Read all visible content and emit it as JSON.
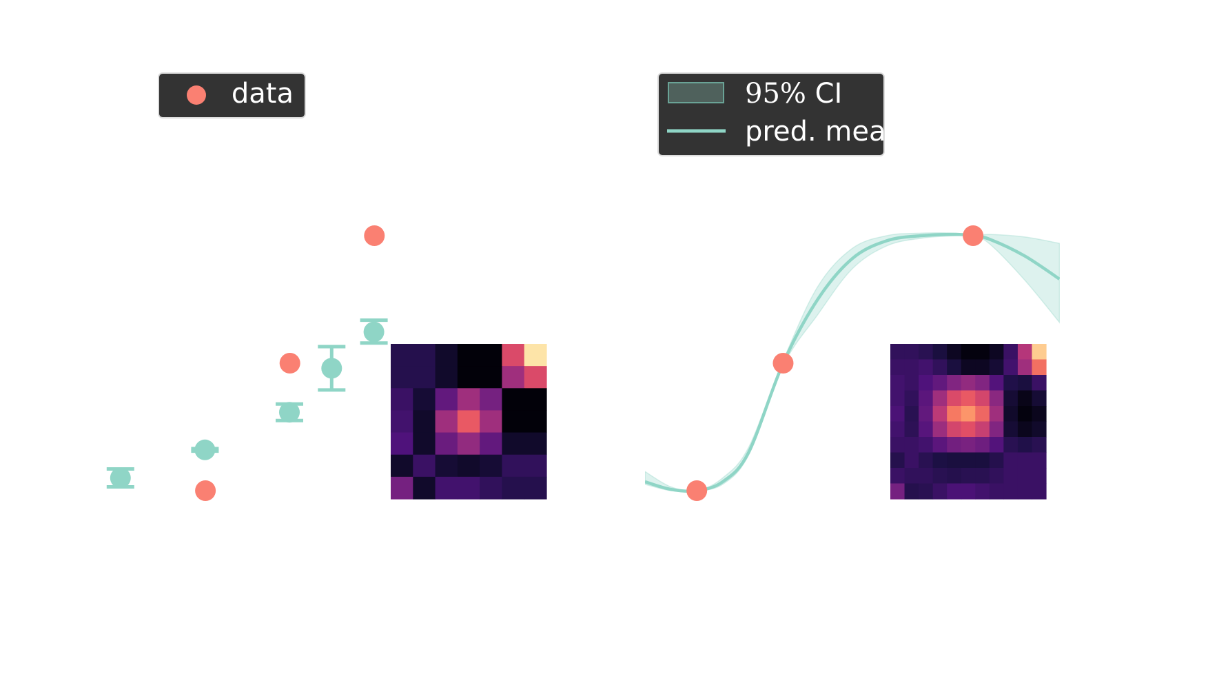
{
  "figure": {
    "background": "#ffffff",
    "colors": {
      "data": "#fa8072",
      "prediction": "#8fd5c6",
      "legend_bg": "#333333"
    }
  },
  "chart_data": [
    {
      "type": "scatter",
      "panel": "left",
      "legend": {
        "location": "upper-left",
        "entries": [
          "data"
        ]
      },
      "xlim": [
        0,
        10
      ],
      "ylim": [
        -1.5,
        1.5
      ],
      "data_points": {
        "name": "data",
        "x": [
          1.0,
          2.0,
          3.0,
          4.0
        ],
        "y": [
          -1.0,
          0.0,
          1.0,
          0.0
        ]
      },
      "predictions": {
        "x": [
          0.5,
          1.5,
          2.5,
          3.0,
          3.5,
          4.0
        ],
        "mean": [
          -0.9,
          -0.68,
          -0.385,
          -0.04,
          0.245,
          -0.02
        ],
        "lower": [
          -0.97,
          -0.69,
          -0.45,
          -0.21,
          0.158,
          -0.16
        ],
        "upper": [
          -0.83,
          -0.67,
          -0.32,
          0.13,
          0.337,
          0.126
        ]
      },
      "inset_heatmap": {
        "type": "heatmap",
        "colormap": "magma",
        "grid": [
          [
            0.15,
            0.15,
            0.08,
            0.01,
            0.01,
            0.6,
            0.95
          ],
          [
            0.15,
            0.15,
            0.08,
            0.01,
            0.01,
            0.45,
            0.6
          ],
          [
            0.2,
            0.1,
            0.3,
            0.45,
            0.35,
            0.01,
            0.01
          ],
          [
            0.22,
            0.08,
            0.45,
            0.65,
            0.45,
            0.01,
            0.01
          ],
          [
            0.25,
            0.08,
            0.32,
            0.42,
            0.3,
            0.08,
            0.08
          ],
          [
            0.08,
            0.2,
            0.1,
            0.08,
            0.1,
            0.18,
            0.18
          ],
          [
            0.35,
            0.08,
            0.22,
            0.22,
            0.18,
            0.15,
            0.15
          ]
        ]
      }
    },
    {
      "type": "line",
      "panel": "right",
      "legend": {
        "location": "upper-left",
        "entries": [
          "$95\\%$ CI",
          "pred. mean"
        ]
      },
      "xlim": [
        0,
        10
      ],
      "ylim": [
        -1.5,
        1.5
      ],
      "data_points": {
        "x": [
          0.6,
          1.6,
          3.8
        ],
        "y": [
          -1.0,
          0.0,
          1.0
        ]
      },
      "prediction_curve": {
        "x": [
          0.0,
          0.3,
          0.6,
          0.9,
          1.2,
          1.6,
          2.0,
          2.4,
          2.8,
          3.2,
          3.6,
          3.8,
          4.0,
          4.4,
          4.8
        ],
        "mean": [
          -0.93,
          -0.99,
          -1.0,
          -0.93,
          -0.7,
          0.0,
          0.5,
          0.82,
          0.96,
          1.0,
          1.01,
          1.0,
          0.97,
          0.84,
          0.66
        ],
        "lower": [
          -0.95,
          -1.0,
          -1.0,
          -0.95,
          -0.72,
          -0.02,
          0.38,
          0.74,
          0.92,
          0.98,
          1.0,
          1.0,
          0.93,
          0.65,
          0.32
        ],
        "upper": [
          -0.85,
          -0.97,
          -1.0,
          -0.9,
          -0.66,
          0.02,
          0.6,
          0.9,
          1.0,
          1.02,
          1.02,
          1.0,
          1.01,
          0.99,
          0.94
        ]
      },
      "inset_heatmap": {
        "type": "heatmap",
        "colormap": "magma",
        "grid": [
          [
            0.18,
            0.18,
            0.16,
            0.12,
            0.06,
            0.02,
            0.02,
            0.06,
            0.2,
            0.5,
            0.9
          ],
          [
            0.2,
            0.2,
            0.22,
            0.18,
            0.12,
            0.06,
            0.06,
            0.1,
            0.22,
            0.45,
            0.7
          ],
          [
            0.22,
            0.2,
            0.25,
            0.3,
            0.38,
            0.42,
            0.38,
            0.26,
            0.14,
            0.12,
            0.2
          ],
          [
            0.22,
            0.18,
            0.28,
            0.45,
            0.6,
            0.65,
            0.58,
            0.4,
            0.1,
            0.04,
            0.1
          ],
          [
            0.24,
            0.16,
            0.3,
            0.52,
            0.72,
            0.78,
            0.68,
            0.45,
            0.08,
            0.02,
            0.05
          ],
          [
            0.22,
            0.17,
            0.27,
            0.44,
            0.58,
            0.62,
            0.55,
            0.38,
            0.1,
            0.05,
            0.08
          ],
          [
            0.2,
            0.2,
            0.22,
            0.28,
            0.34,
            0.36,
            0.33,
            0.26,
            0.16,
            0.14,
            0.16
          ],
          [
            0.15,
            0.2,
            0.16,
            0.13,
            0.12,
            0.12,
            0.12,
            0.15,
            0.2,
            0.2,
            0.2
          ],
          [
            0.2,
            0.18,
            0.18,
            0.16,
            0.15,
            0.16,
            0.16,
            0.18,
            0.2,
            0.2,
            0.2
          ],
          [
            0.35,
            0.15,
            0.16,
            0.2,
            0.24,
            0.24,
            0.22,
            0.2,
            0.2,
            0.2,
            0.2
          ]
        ]
      }
    }
  ]
}
